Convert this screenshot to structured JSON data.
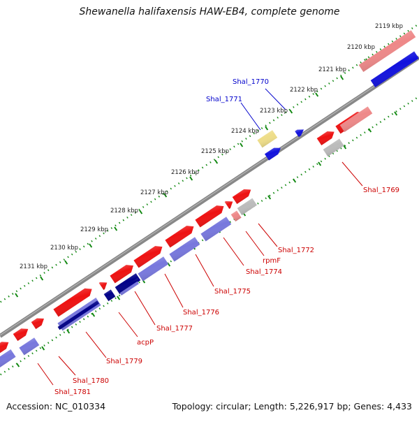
{
  "title": "Shewanella halifaxensis HAW-EB4, complete genome",
  "footer": {
    "accession": "Accession: NC_010334",
    "summary": "Topology: circular; Length: 5,226,917 bp; Genes: 4,433"
  },
  "colors": {
    "forward_cds": "#ee1111",
    "forward_light": "#ee8888",
    "reverse_cds": "#1111dd",
    "reverse_light": "#7777dd",
    "reverse_dark": "#000088",
    "pseudo_grey": "#bbbbbb",
    "rna_yellow": "#eedd88",
    "tick_green": "#118811",
    "backbone": "#888888",
    "label_red": "#cc0000",
    "label_blue": "#0000cc"
  },
  "kbp_labels": [
    "2119 kbp",
    "2120 kbp",
    "2121 kbp",
    "2122 kbp",
    "2123 kbp",
    "2124 kbp",
    "2125 kbp",
    "2126 kbp",
    "2127 kbp",
    "2128 kbp",
    "2129 kbp",
    "2130 kbp",
    "2131 kbp"
  ],
  "gene_labels": [
    {
      "text": "Shal_1770",
      "color": "blue"
    },
    {
      "text": "Shal_1771",
      "color": "blue"
    },
    {
      "text": "Shal_1769",
      "color": "red"
    },
    {
      "text": "Shal_1772",
      "color": "red"
    },
    {
      "text": "rpmF",
      "color": "red"
    },
    {
      "text": "Shal_1774",
      "color": "red"
    },
    {
      "text": "Shal_1775",
      "color": "red"
    },
    {
      "text": "Shal_1776",
      "color": "red"
    },
    {
      "text": "Shal_1777",
      "color": "red"
    },
    {
      "text": "acpP",
      "color": "red"
    },
    {
      "text": "Shal_1779",
      "color": "red"
    },
    {
      "text": "Shal_1780",
      "color": "red"
    },
    {
      "text": "Shal_1781",
      "color": "red"
    }
  ]
}
